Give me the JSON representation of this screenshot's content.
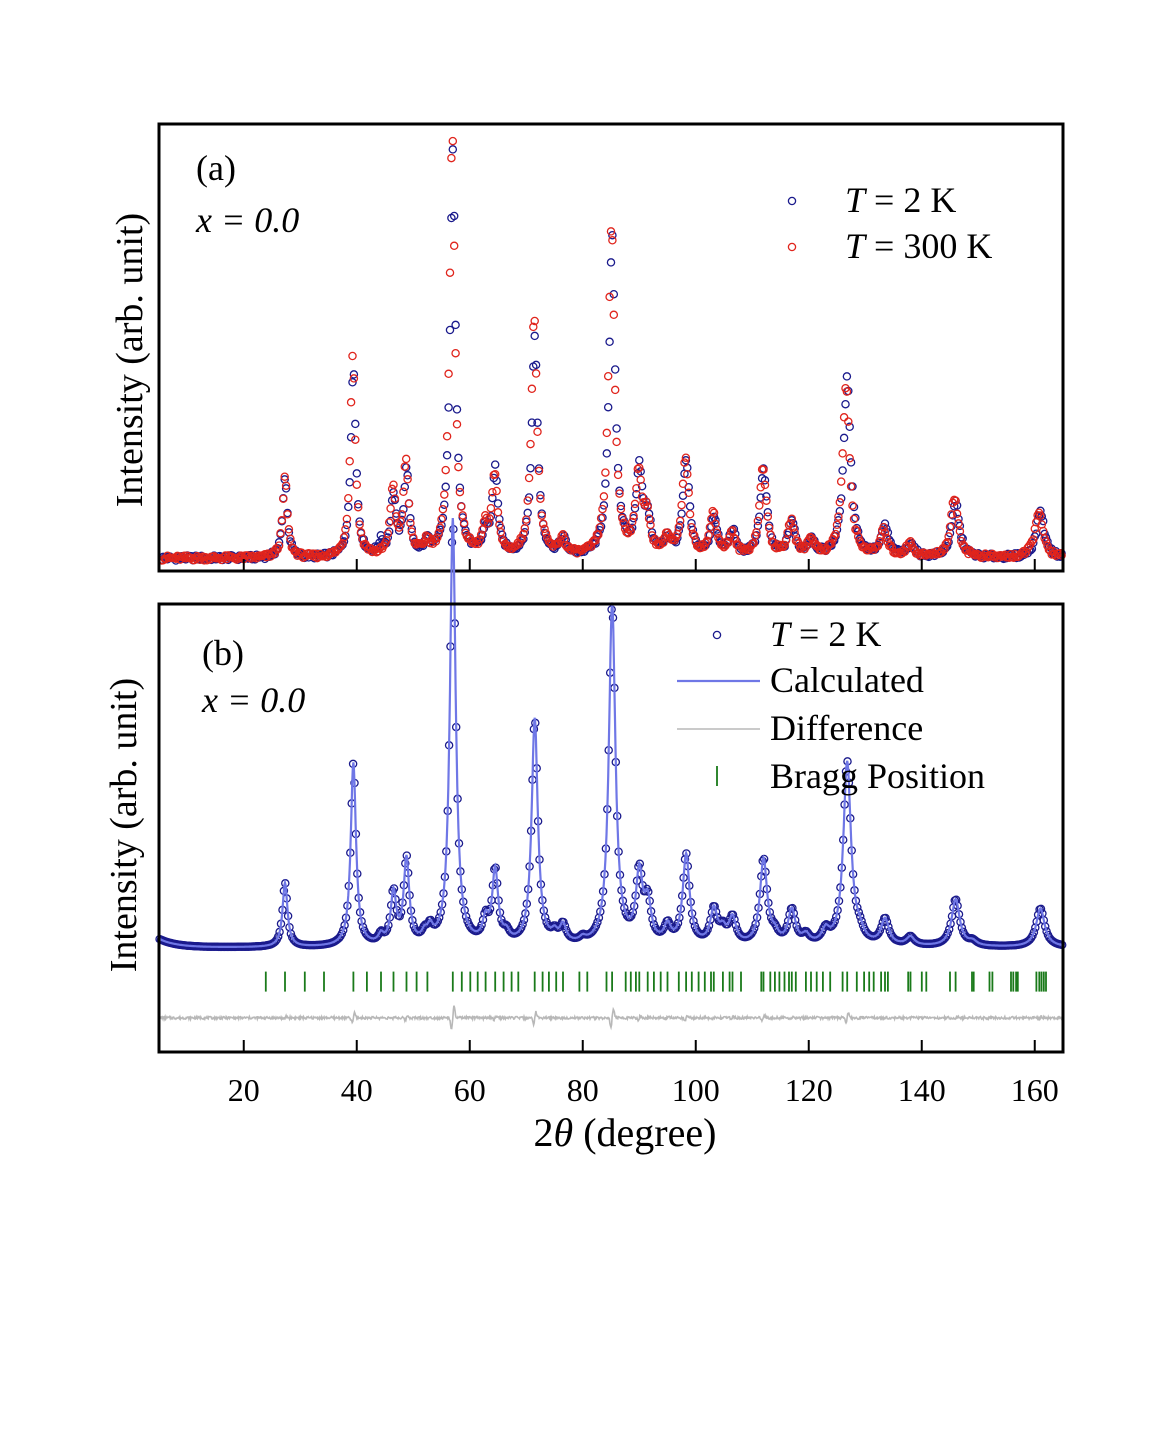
{
  "figure": {
    "xlabel_prefix": "2",
    "xlabel_theta": "θ",
    "xlabel_suffix": " (degree)"
  },
  "chart_data": [
    {
      "type": "scatter",
      "panel": "(a)",
      "composition": "x = 0.0",
      "ylabel": "Intensity (arb. unit)",
      "xlim": [
        5,
        165
      ],
      "ylim": [
        0,
        1.05
      ],
      "xticks": [
        20,
        40,
        60,
        80,
        100,
        120,
        140,
        160
      ],
      "show_x_tick_labels": false,
      "legend_position": "top-right",
      "series": [
        {
          "name": "T = 2 K",
          "legend_T": "T",
          "legend_rest": " = 2 K",
          "color": "#1a1a8c",
          "marker": "open-circle",
          "baseline": 0.03,
          "peaks": [
            [
              27.3,
              0.19
            ],
            [
              39.4,
              0.45
            ],
            [
              44.3,
              0.03
            ],
            [
              46.5,
              0.14
            ],
            [
              48.8,
              0.2
            ],
            [
              52.5,
              0.03
            ],
            [
              57.0,
              0.95
            ],
            [
              62.8,
              0.05
            ],
            [
              64.5,
              0.2
            ],
            [
              71.5,
              0.52
            ],
            [
              76.5,
              0.04
            ],
            [
              85.2,
              0.75
            ],
            [
              90.0,
              0.2
            ],
            [
              91.5,
              0.08
            ],
            [
              95.0,
              0.04
            ],
            [
              98.3,
              0.22
            ],
            [
              103.2,
              0.09
            ],
            [
              106.5,
              0.06
            ],
            [
              112.0,
              0.2
            ],
            [
              117.0,
              0.08
            ],
            [
              120.5,
              0.04
            ],
            [
              126.8,
              0.42
            ],
            [
              133.5,
              0.07
            ],
            [
              138.0,
              0.03
            ],
            [
              146.0,
              0.13
            ],
            [
              161.0,
              0.11
            ]
          ]
        },
        {
          "name": "T = 300 K",
          "legend_T": "T",
          "legend_rest": " = 300 K",
          "color": "#e0241c",
          "marker": "open-circle",
          "baseline": 0.03,
          "peaks": [
            [
              27.3,
              0.19
            ],
            [
              39.3,
              0.48
            ],
            [
              46.4,
              0.16
            ],
            [
              48.7,
              0.22
            ],
            [
              52.4,
              0.03
            ],
            [
              56.9,
              1.0
            ],
            [
              62.7,
              0.06
            ],
            [
              64.4,
              0.19
            ],
            [
              71.4,
              0.57
            ],
            [
              76.4,
              0.04
            ],
            [
              85.1,
              0.78
            ],
            [
              89.9,
              0.19
            ],
            [
              91.4,
              0.08
            ],
            [
              94.9,
              0.04
            ],
            [
              98.2,
              0.23
            ],
            [
              103.1,
              0.1
            ],
            [
              106.4,
              0.05
            ],
            [
              111.9,
              0.21
            ],
            [
              116.9,
              0.08
            ],
            [
              120.4,
              0.04
            ],
            [
              126.6,
              0.4
            ],
            [
              133.3,
              0.06
            ],
            [
              137.9,
              0.03
            ],
            [
              145.8,
              0.14
            ],
            [
              160.7,
              0.11
            ]
          ]
        }
      ]
    },
    {
      "type": "line",
      "panel": "(b)",
      "composition": "x = 0.0",
      "ylabel": "Intensity (arb. unit)",
      "xlim": [
        5,
        165
      ],
      "ylim": [
        0,
        1.05
      ],
      "xticks": [
        20,
        40,
        60,
        80,
        100,
        120,
        140,
        160
      ],
      "show_x_tick_labels": true,
      "legend_position": "top-right",
      "series": [
        {
          "name": "T = 2 K",
          "legend_T": "T",
          "legend_rest": " = 2 K",
          "kind": "observed",
          "color": "#1a1a8c",
          "marker": "open-circle",
          "baseline": 0.245,
          "peaks": [
            [
              27.3,
              0.15
            ],
            [
              39.4,
              0.43
            ],
            [
              44.3,
              0.02
            ],
            [
              46.5,
              0.12
            ],
            [
              48.8,
              0.2
            ],
            [
              52.0,
              0.02
            ],
            [
              53.0,
              0.03
            ],
            [
              57.0,
              1.0
            ],
            [
              62.8,
              0.05
            ],
            [
              64.5,
              0.17
            ],
            [
              66.5,
              0.02
            ],
            [
              71.5,
              0.53
            ],
            [
              75.0,
              0.02
            ],
            [
              76.5,
              0.04
            ],
            [
              80.0,
              0.01
            ],
            [
              85.2,
              0.8
            ],
            [
              90.0,
              0.16
            ],
            [
              91.5,
              0.09
            ],
            [
              95.0,
              0.04
            ],
            [
              98.3,
              0.21
            ],
            [
              103.2,
              0.08
            ],
            [
              104.8,
              0.03
            ],
            [
              106.5,
              0.06
            ],
            [
              112.0,
              0.2
            ],
            [
              114.0,
              0.02
            ],
            [
              117.0,
              0.08
            ],
            [
              119.5,
              0.02
            ],
            [
              123.0,
              0.03
            ],
            [
              126.8,
              0.43
            ],
            [
              129.0,
              0.02
            ],
            [
              133.5,
              0.06
            ],
            [
              138.0,
              0.02
            ],
            [
              146.0,
              0.11
            ],
            [
              149.0,
              0.01
            ],
            [
              161.0,
              0.09
            ]
          ]
        },
        {
          "name": "Calculated",
          "kind": "calculated",
          "color": "#6f77e6"
        },
        {
          "name": "Difference",
          "kind": "difference",
          "color": "#b8b8b8",
          "offset": 0.08
        },
        {
          "name": "Bragg Position",
          "kind": "bragg",
          "color": "#1a7a1a",
          "level": 0.165,
          "positions": [
            23.9,
            27.3,
            30.8,
            34.2,
            39.4,
            41.8,
            44.3,
            46.5,
            48.8,
            50.6,
            52.5,
            57.0,
            58.6,
            60.1,
            61.4,
            62.8,
            64.5,
            66.0,
            67.4,
            68.6,
            71.5,
            72.9,
            74.0,
            75.3,
            76.5,
            79.4,
            80.8,
            84.2,
            85.2,
            87.6,
            88.5,
            89.4,
            90.0,
            91.5,
            92.6,
            93.8,
            95.0,
            97.0,
            98.3,
            99.3,
            100.5,
            101.6,
            102.7,
            103.2,
            104.8,
            106.0,
            106.5,
            108.0,
            111.6,
            112.0,
            113.2,
            114.0,
            114.8,
            115.7,
            116.5,
            117.0,
            117.7,
            119.5,
            120.4,
            121.4,
            122.5,
            123.8,
            126.0,
            126.8,
            128.5,
            129.8,
            130.7,
            131.5,
            132.8,
            133.5,
            134.0,
            137.6,
            138.0,
            140.0,
            140.8,
            145.0,
            146.0,
            148.9,
            149.2,
            152.0,
            152.5,
            155.8,
            156.2,
            156.7,
            157.0,
            160.3,
            160.8,
            161.2,
            161.6,
            162.0
          ]
        }
      ]
    }
  ]
}
